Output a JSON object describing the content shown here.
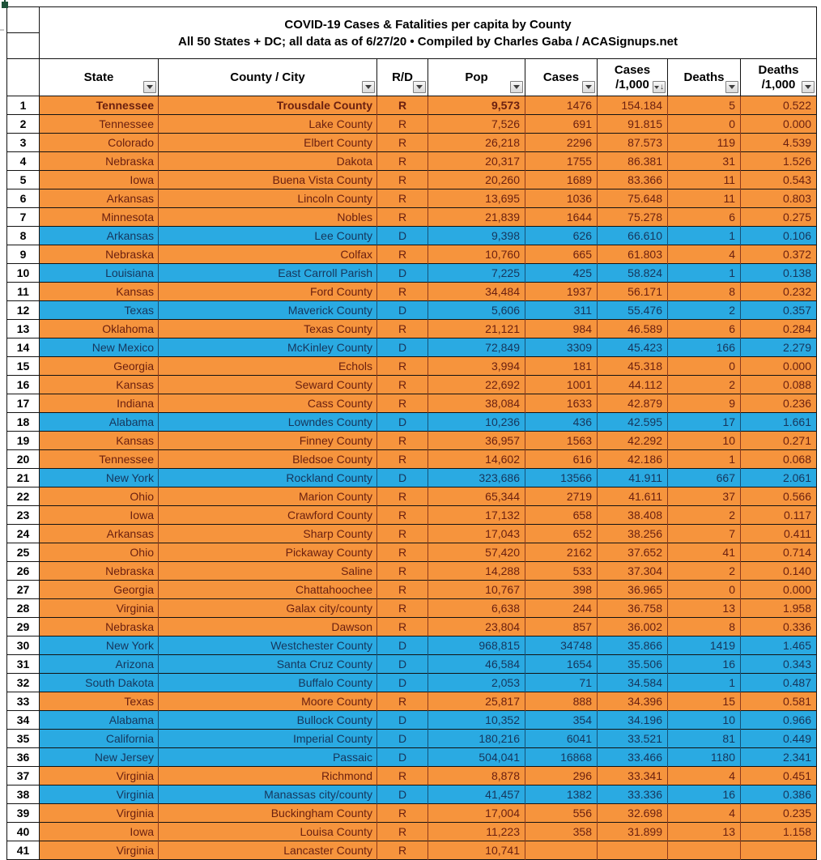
{
  "title": {
    "line1": "COVID-19 Cases & Fatalities per capita by County",
    "line2": "All 50 States + DC; all data as of 6/27/20  • Compiled by Charles Gaba / ACASignups.net"
  },
  "colors": {
    "republican_row_bg": "#f6943d",
    "democrat_row_bg": "#2aaae2",
    "republican_text": "#6b2010",
    "democrat_text": "#16365c",
    "grid_line": "#121212",
    "corner_marker_green": "#1d5138"
  },
  "columns": [
    {
      "id": "state",
      "label_lines": [
        "State"
      ],
      "filter": "dropdown"
    },
    {
      "id": "county",
      "label_lines": [
        "County / City"
      ],
      "filter": "dropdown"
    },
    {
      "id": "rd",
      "label_lines": [
        "R/D"
      ],
      "filter": "dropdown"
    },
    {
      "id": "pop",
      "label_lines": [
        "Pop"
      ],
      "filter": "dropdown"
    },
    {
      "id": "cases",
      "label_lines": [
        "Cases"
      ],
      "filter": "dropdown"
    },
    {
      "id": "cases_1000",
      "label_lines": [
        "Cases",
        "/1,000"
      ],
      "filter": "sorted-desc"
    },
    {
      "id": "deaths",
      "label_lines": [
        "Deaths"
      ],
      "filter": "dropdown"
    },
    {
      "id": "deaths_1000",
      "label_lines": [
        "Deaths",
        "/1,000"
      ],
      "filter": "dropdown"
    }
  ],
  "rows": [
    {
      "rank": "1",
      "state": "Tennessee",
      "county": "Trousdale County",
      "rd": "R",
      "pop": "9,573",
      "cases": "1476",
      "cases_1000": "154.184",
      "deaths": "5",
      "deaths_1000": "0.522",
      "bold": true
    },
    {
      "rank": "2",
      "state": "Tennessee",
      "county": "Lake County",
      "rd": "R",
      "pop": "7,526",
      "cases": "691",
      "cases_1000": "91.815",
      "deaths": "0",
      "deaths_1000": "0.000"
    },
    {
      "rank": "3",
      "state": "Colorado",
      "county": "Elbert County",
      "rd": "R",
      "pop": "26,218",
      "cases": "2296",
      "cases_1000": "87.573",
      "deaths": "119",
      "deaths_1000": "4.539"
    },
    {
      "rank": "4",
      "state": "Nebraska",
      "county": "Dakota",
      "rd": "R",
      "pop": "20,317",
      "cases": "1755",
      "cases_1000": "86.381",
      "deaths": "31",
      "deaths_1000": "1.526"
    },
    {
      "rank": "5",
      "state": "Iowa",
      "county": "Buena Vista County",
      "rd": "R",
      "pop": "20,260",
      "cases": "1689",
      "cases_1000": "83.366",
      "deaths": "11",
      "deaths_1000": "0.543"
    },
    {
      "rank": "6",
      "state": "Arkansas",
      "county": "Lincoln County",
      "rd": "R",
      "pop": "13,695",
      "cases": "1036",
      "cases_1000": "75.648",
      "deaths": "11",
      "deaths_1000": "0.803"
    },
    {
      "rank": "7",
      "state": "Minnesota",
      "county": "Nobles",
      "rd": "R",
      "pop": "21,839",
      "cases": "1644",
      "cases_1000": "75.278",
      "deaths": "6",
      "deaths_1000": "0.275"
    },
    {
      "rank": "8",
      "state": "Arkansas",
      "county": "Lee County",
      "rd": "D",
      "pop": "9,398",
      "cases": "626",
      "cases_1000": "66.610",
      "deaths": "1",
      "deaths_1000": "0.106"
    },
    {
      "rank": "9",
      "state": "Nebraska",
      "county": "Colfax",
      "rd": "R",
      "pop": "10,760",
      "cases": "665",
      "cases_1000": "61.803",
      "deaths": "4",
      "deaths_1000": "0.372"
    },
    {
      "rank": "10",
      "state": "Louisiana",
      "county": "East Carroll Parish",
      "rd": "D",
      "pop": "7,225",
      "cases": "425",
      "cases_1000": "58.824",
      "deaths": "1",
      "deaths_1000": "0.138"
    },
    {
      "rank": "11",
      "state": "Kansas",
      "county": "Ford County",
      "rd": "R",
      "pop": "34,484",
      "cases": "1937",
      "cases_1000": "56.171",
      "deaths": "8",
      "deaths_1000": "0.232"
    },
    {
      "rank": "12",
      "state": "Texas",
      "county": "Maverick County",
      "rd": "D",
      "pop": "5,606",
      "cases": "311",
      "cases_1000": "55.476",
      "deaths": "2",
      "deaths_1000": "0.357",
      "shrink": true
    },
    {
      "rank": "13",
      "state": "Oklahoma",
      "county": "Texas County",
      "rd": "R",
      "pop": "21,121",
      "cases": "984",
      "cases_1000": "46.589",
      "deaths": "6",
      "deaths_1000": "0.284"
    },
    {
      "rank": "14",
      "state": "New Mexico",
      "county": "McKinley County",
      "rd": "D",
      "pop": "72,849",
      "cases": "3309",
      "cases_1000": "45.423",
      "deaths": "166",
      "deaths_1000": "2.279"
    },
    {
      "rank": "15",
      "state": "Georgia",
      "county": "Echols",
      "rd": "R",
      "pop": "3,994",
      "cases": "181",
      "cases_1000": "45.318",
      "deaths": "0",
      "deaths_1000": "0.000"
    },
    {
      "rank": "16",
      "state": "Kansas",
      "county": "Seward County",
      "rd": "R",
      "pop": "22,692",
      "cases": "1001",
      "cases_1000": "44.112",
      "deaths": "2",
      "deaths_1000": "0.088"
    },
    {
      "rank": "17",
      "state": "Indiana",
      "county": "Cass County",
      "rd": "R",
      "pop": "38,084",
      "cases": "1633",
      "cases_1000": "42.879",
      "deaths": "9",
      "deaths_1000": "0.236"
    },
    {
      "rank": "18",
      "state": "Alabama",
      "county": "Lowndes County",
      "rd": "D",
      "pop": "10,236",
      "cases": "436",
      "cases_1000": "42.595",
      "deaths": "17",
      "deaths_1000": "1.661"
    },
    {
      "rank": "19",
      "state": "Kansas",
      "county": "Finney County",
      "rd": "R",
      "pop": "36,957",
      "cases": "1563",
      "cases_1000": "42.292",
      "deaths": "10",
      "deaths_1000": "0.271"
    },
    {
      "rank": "20",
      "state": "Tennessee",
      "county": "Bledsoe County",
      "rd": "R",
      "pop": "14,602",
      "cases": "616",
      "cases_1000": "42.186",
      "deaths": "1",
      "deaths_1000": "0.068"
    },
    {
      "rank": "21",
      "state": "New York",
      "county": "Rockland County",
      "rd": "D",
      "pop": "323,686",
      "cases": "13566",
      "cases_1000": "41.911",
      "deaths": "667",
      "deaths_1000": "2.061"
    },
    {
      "rank": "22",
      "state": "Ohio",
      "county": "Marion County",
      "rd": "R",
      "pop": "65,344",
      "cases": "2719",
      "cases_1000": "41.611",
      "deaths": "37",
      "deaths_1000": "0.566"
    },
    {
      "rank": "23",
      "state": "Iowa",
      "county": "Crawford County",
      "rd": "R",
      "pop": "17,132",
      "cases": "658",
      "cases_1000": "38.408",
      "deaths": "2",
      "deaths_1000": "0.117"
    },
    {
      "rank": "24",
      "state": "Arkansas",
      "county": "Sharp County",
      "rd": "R",
      "pop": "17,043",
      "cases": "652",
      "cases_1000": "38.256",
      "deaths": "7",
      "deaths_1000": "0.411"
    },
    {
      "rank": "25",
      "state": "Ohio",
      "county": "Pickaway County",
      "rd": "R",
      "pop": "57,420",
      "cases": "2162",
      "cases_1000": "37.652",
      "deaths": "41",
      "deaths_1000": "0.714"
    },
    {
      "rank": "26",
      "state": "Nebraska",
      "county": "Saline",
      "rd": "R",
      "pop": "14,288",
      "cases": "533",
      "cases_1000": "37.304",
      "deaths": "2",
      "deaths_1000": "0.140"
    },
    {
      "rank": "27",
      "state": "Georgia",
      "county": "Chattahoochee",
      "rd": "R",
      "pop": "10,767",
      "cases": "398",
      "cases_1000": "36.965",
      "deaths": "0",
      "deaths_1000": "0.000"
    },
    {
      "rank": "28",
      "state": "Virginia",
      "county": "Galax city/county",
      "rd": "R",
      "pop": "6,638",
      "cases": "244",
      "cases_1000": "36.758",
      "deaths": "13",
      "deaths_1000": "1.958"
    },
    {
      "rank": "29",
      "state": "Nebraska",
      "county": "Dawson",
      "rd": "R",
      "pop": "23,804",
      "cases": "857",
      "cases_1000": "36.002",
      "deaths": "8",
      "deaths_1000": "0.336"
    },
    {
      "rank": "30",
      "state": "New York",
      "county": "Westchester County",
      "rd": "D",
      "pop": "968,815",
      "cases": "34748",
      "cases_1000": "35.866",
      "deaths": "1419",
      "deaths_1000": "1.465"
    },
    {
      "rank": "31",
      "state": "Arizona",
      "county": "Santa Cruz County",
      "rd": "D",
      "pop": "46,584",
      "cases": "1654",
      "cases_1000": "35.506",
      "deaths": "16",
      "deaths_1000": "0.343"
    },
    {
      "rank": "32",
      "state": "South Dakota",
      "county": "Buffalo County",
      "rd": "D",
      "pop": "2,053",
      "cases": "71",
      "cases_1000": "34.584",
      "deaths": "1",
      "deaths_1000": "0.487"
    },
    {
      "rank": "33",
      "state": "Texas",
      "county": "Moore County",
      "rd": "R",
      "pop": "25,817",
      "cases": "888",
      "cases_1000": "34.396",
      "deaths": "15",
      "deaths_1000": "0.581"
    },
    {
      "rank": "34",
      "state": "Alabama",
      "county": "Bullock County",
      "rd": "D",
      "pop": "10,352",
      "cases": "354",
      "cases_1000": "34.196",
      "deaths": "10",
      "deaths_1000": "0.966"
    },
    {
      "rank": "35",
      "state": "California",
      "county": "Imperial County",
      "rd": "D",
      "pop": "180,216",
      "cases": "6041",
      "cases_1000": "33.521",
      "deaths": "81",
      "deaths_1000": "0.449"
    },
    {
      "rank": "36",
      "state": "New Jersey",
      "county": "Passaic",
      "rd": "D",
      "pop": "504,041",
      "cases": "16868",
      "cases_1000": "33.466",
      "deaths": "1180",
      "deaths_1000": "2.341"
    },
    {
      "rank": "37",
      "state": "Virginia",
      "county": "Richmond",
      "rd": "R",
      "pop": "8,878",
      "cases": "296",
      "cases_1000": "33.341",
      "deaths": "4",
      "deaths_1000": "0.451"
    },
    {
      "rank": "38",
      "state": "Virginia",
      "county": "Manassas city/county",
      "rd": "D",
      "pop": "41,457",
      "cases": "1382",
      "cases_1000": "33.336",
      "deaths": "16",
      "deaths_1000": "0.386"
    },
    {
      "rank": "39",
      "state": "Virginia",
      "county": "Buckingham County",
      "rd": "R",
      "pop": "17,004",
      "cases": "556",
      "cases_1000": "32.698",
      "deaths": "4",
      "deaths_1000": "0.235"
    },
    {
      "rank": "40",
      "state": "Iowa",
      "county": "Louisa County",
      "rd": "R",
      "pop": "11,223",
      "cases": "358",
      "cases_1000": "31.899",
      "deaths": "13",
      "deaths_1000": "1.158"
    },
    {
      "rank": "41",
      "state": "Virginia",
      "county": "Lancaster County",
      "rd": "R",
      "pop": "10,741",
      "cases": "",
      "cases_1000": "",
      "deaths": "",
      "deaths_1000": "",
      "partial": true
    }
  ]
}
